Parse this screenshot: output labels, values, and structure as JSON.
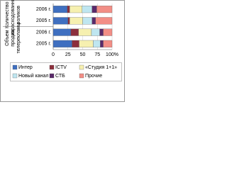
{
  "chart_data": {
    "type": "stacked_bar_horizontal",
    "group_labels": [
      [
        "Количество",
        "израсходованных",
        "роликов"
      ],
      [
        "Объем",
        "продаж",
        "телерекламы"
      ]
    ],
    "categories": [
      "2006 г.",
      "2005 г.",
      "2006 г.",
      "2005 г."
    ],
    "series": [
      {
        "name": "Интер",
        "color": "#3f6fc0",
        "values": [
          24,
          25,
          30,
          32
        ]
      },
      {
        "name": "ICTV",
        "color": "#8c2f3c",
        "values": [
          4,
          3,
          13,
          12
        ]
      },
      {
        "name": "«Студия 1+1»",
        "color": "#f6f0b0",
        "values": [
          21,
          22,
          22,
          24
        ]
      },
      {
        "name": "Новый канал",
        "color": "#bfe6f0",
        "values": [
          17,
          16,
          14,
          12
        ]
      },
      {
        "name": "СТБ",
        "color": "#5a2a6a",
        "values": [
          8,
          6,
          6,
          5
        ]
      },
      {
        "name": "Прочие",
        "color": "#f28e86",
        "values": [
          26,
          28,
          15,
          15
        ]
      }
    ],
    "xlim": [
      0,
      100
    ],
    "xticks": [
      0,
      25,
      50,
      75,
      {
        "value": 100,
        "label": "100%"
      }
    ],
    "grid": true
  }
}
